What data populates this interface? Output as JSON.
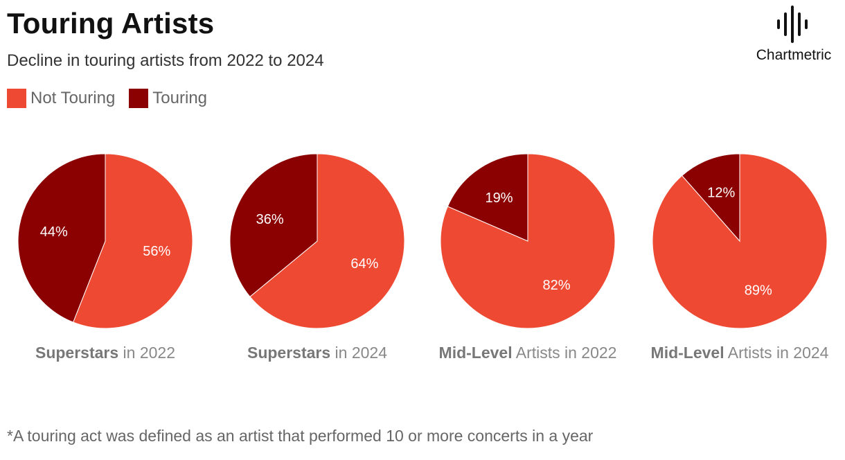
{
  "header": {
    "title": "Touring Artists",
    "subtitle": "Decline in touring artists from 2022 to 2024",
    "brand": "Chartmetric"
  },
  "legend": [
    {
      "label": "Not Touring",
      "color": "#ee4a33"
    },
    {
      "label": "Touring",
      "color": "#8b0000"
    }
  ],
  "chart_data": [
    {
      "type": "pie",
      "caption_bold": "Superstars",
      "caption_rest": " in 2022",
      "slices": [
        {
          "label": "Not Touring",
          "value": 56,
          "display": "56%"
        },
        {
          "label": "Touring",
          "value": 44,
          "display": "44%"
        }
      ]
    },
    {
      "type": "pie",
      "caption_bold": "Superstars",
      "caption_rest": " in 2024",
      "slices": [
        {
          "label": "Not Touring",
          "value": 64,
          "display": "64%"
        },
        {
          "label": "Touring",
          "value": 36,
          "display": "36%"
        }
      ]
    },
    {
      "type": "pie",
      "caption_bold": "Mid-Level",
      "caption_rest": " Artists in 2022",
      "slices": [
        {
          "label": "Not Touring",
          "value": 81.5,
          "display": "82%"
        },
        {
          "label": "Touring",
          "value": 18.5,
          "display": "19%"
        }
      ]
    },
    {
      "type": "pie",
      "caption_bold": "Mid-Level",
      "caption_rest": " Artists in 2024",
      "slices": [
        {
          "label": "Not Touring",
          "value": 88.5,
          "display": "89%"
        },
        {
          "label": "Touring",
          "value": 11.5,
          "display": "12%"
        }
      ]
    }
  ],
  "footnote": "*A touring act was defined as an artist that performed 10 or more concerts in a year"
}
